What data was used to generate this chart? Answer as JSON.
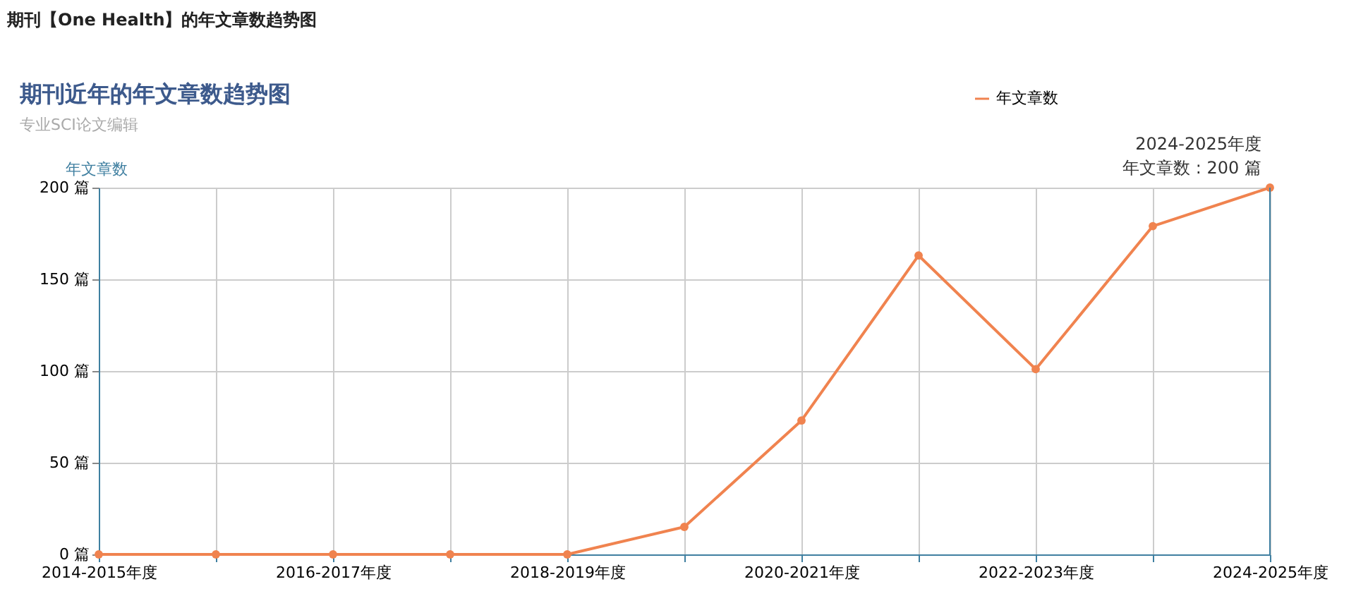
{
  "chart_data": {
    "type": "line",
    "title": "期刊近年的年文章数趋势图",
    "subtitle": "专业SCI论文编辑",
    "ylabel": "年文章数",
    "categories": [
      "2014-2015年度",
      null,
      "2016-2017年度",
      null,
      "2018-2019年度",
      null,
      "2020-2021年度",
      null,
      "2022-2023年度",
      null,
      "2024-2025年度"
    ],
    "series": [
      {
        "name": "年文章数",
        "color": "#f0834f",
        "values": [
          0,
          0,
          0,
          0,
          0,
          15,
          73,
          163,
          101,
          179,
          200
        ]
      }
    ],
    "ylim": [
      0,
      200
    ],
    "yticks": [
      {
        "value": 0,
        "label": "0 篇"
      },
      {
        "value": 50,
        "label": "50 篇"
      },
      {
        "value": 100,
        "label": "100 篇"
      },
      {
        "value": 150,
        "label": "150 篇"
      },
      {
        "value": 200,
        "label": "200 篇"
      }
    ],
    "grid": true,
    "legend": "top right",
    "marker": "circle",
    "line_style": "solid",
    "annotations": [
      "期刊【One Health】的年文章数趋势图",
      {
        "text": "2024-2025年度",
        "x": "2024-2025年度",
        "y": 200
      },
      {
        "text": "年文章数 : 200 篇",
        "x": "2024-2025年度",
        "y": 200
      }
    ]
  }
}
